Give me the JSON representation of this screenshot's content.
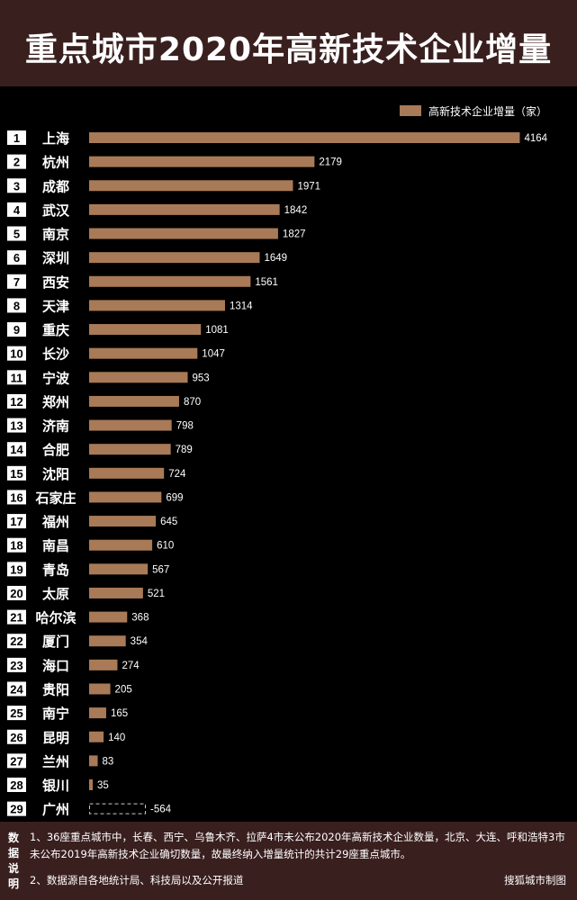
{
  "title": "重点城市2020年高新技术企业增量",
  "colors": {
    "header_bg": "#3a1f1f",
    "bar": "#a87a57",
    "rank_box": "#ffffff",
    "rank_text": "#000000",
    "background": "#000000",
    "text": "#ffffff"
  },
  "chart_data": {
    "type": "bar",
    "orientation": "horizontal",
    "title": "重点城市2020年高新技术企业增量",
    "legend": "高新技术企业增量（家）",
    "legend_position": "top-right",
    "grid": false,
    "ranks": [
      "1",
      "2",
      "3",
      "4",
      "5",
      "6",
      "7",
      "8",
      "9",
      "10",
      "11",
      "12",
      "13",
      "14",
      "15",
      "16",
      "17",
      "18",
      "19",
      "20",
      "21",
      "22",
      "23",
      "24",
      "25",
      "26",
      "27",
      "28",
      "29"
    ],
    "categories": [
      "上海",
      "杭州",
      "成都",
      "武汉",
      "南京",
      "深圳",
      "西安",
      "天津",
      "重庆",
      "长沙",
      "宁波",
      "郑州",
      "济南",
      "合肥",
      "沈阳",
      "石家庄",
      "福州",
      "南昌",
      "青岛",
      "太原",
      "哈尔滨",
      "厦门",
      "海口",
      "贵阳",
      "南宁",
      "昆明",
      "兰州",
      "银川",
      "广州"
    ],
    "series": [
      {
        "name": "高新技术企业增量（家）",
        "values": [
          4164,
          2179,
          1971,
          1842,
          1827,
          1649,
          1561,
          1314,
          1081,
          1047,
          953,
          870,
          798,
          789,
          724,
          699,
          645,
          610,
          567,
          521,
          368,
          354,
          274,
          205,
          165,
          140,
          83,
          35,
          -564
        ]
      }
    ]
  },
  "footer": {
    "label_chars": [
      "数",
      "据",
      "说",
      "明"
    ],
    "note1": "1、36座重点城市中，长春、西宁、乌鲁木齐、拉萨4市未公布2020年高新技术企业数量，北京、大连、呼和浩特3市未公布2019年高新技术企业确切数量，故最终纳入增量统计的共计29座重点城市。",
    "note2": "2、数据源自各地统计局、科技局以及公开报道",
    "credit": "搜狐城市制图"
  }
}
